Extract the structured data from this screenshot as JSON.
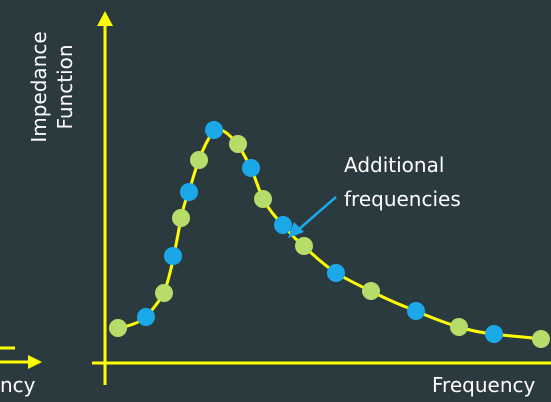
{
  "y_axis_label_lines": [
    "Impedance",
    "Function"
  ],
  "x_axis_label": "Frequency",
  "left_axis_label_fragment": "ncy",
  "annotation_lines": [
    "Additional",
    "frequencies"
  ],
  "colors": {
    "background": "#2b3a3f",
    "axis": "#ffff00",
    "curve": "#ffff00",
    "original_points": "#b6dc6a",
    "additional_points": "#1ba8e8",
    "annotation_arrow": "#1ba8e8",
    "text": "#ffffff"
  },
  "points": [
    {
      "kind": "original"
    },
    {
      "kind": "additional"
    },
    {
      "kind": "original"
    },
    {
      "kind": "additional"
    },
    {
      "kind": "original"
    },
    {
      "kind": "additional"
    },
    {
      "kind": "original"
    },
    {
      "kind": "additional"
    },
    {
      "kind": "original"
    },
    {
      "kind": "additional"
    },
    {
      "kind": "original"
    },
    {
      "kind": "additional"
    },
    {
      "kind": "original"
    },
    {
      "kind": "additional"
    },
    {
      "kind": "original"
    },
    {
      "kind": "additional"
    },
    {
      "kind": "original"
    },
    {
      "kind": "additional"
    },
    {
      "kind": "original"
    },
    {
      "kind": "additional"
    },
    {
      "kind": "original"
    }
  ]
}
